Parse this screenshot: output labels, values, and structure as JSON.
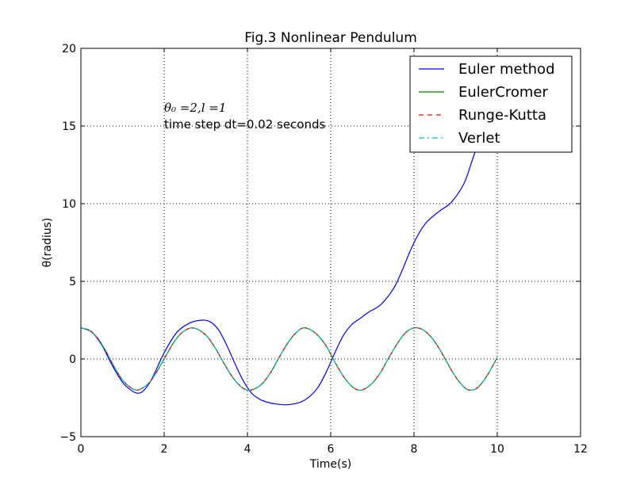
{
  "chart_data": {
    "type": "line",
    "title": "Fig.3 Nonlinear Pendulum",
    "xlabel": "Time(s)",
    "ylabel": "θ(radius)",
    "xlim": [
      0,
      12
    ],
    "ylim": [
      -5,
      20
    ],
    "xticks": [
      0,
      2,
      4,
      6,
      8,
      10,
      12
    ],
    "yticks": [
      -5,
      0,
      5,
      10,
      15,
      20
    ],
    "xtick_labels": [
      "0",
      "2",
      "4",
      "6",
      "8",
      "10",
      "12"
    ],
    "ytick_labels": [
      "−5",
      "0",
      "5",
      "10",
      "15",
      "20"
    ],
    "grid": true,
    "legend_position": "upper right",
    "annotation_math": "θ₀ =2,l =1",
    "annotation_text": "time step dt=0.02 seconds",
    "series": [
      {
        "name": "Euler method",
        "color": "#0000ff",
        "style": "solid",
        "x": [
          0,
          0.25,
          0.5,
          0.75,
          1.0,
          1.2,
          1.35,
          1.5,
          1.7,
          2.0,
          2.3,
          2.6,
          2.9,
          3.1,
          3.3,
          3.5,
          3.7,
          3.9,
          4.1,
          4.3,
          4.5,
          4.7,
          4.9,
          5.1,
          5.3,
          5.5,
          5.7,
          5.9,
          6.1,
          6.3,
          6.5,
          6.7,
          6.9,
          7.2,
          7.5,
          7.7,
          7.9,
          8.1,
          8.3,
          8.6,
          8.9,
          9.2,
          9.4,
          9.55
        ],
        "y": [
          2.0,
          1.75,
          0.9,
          -0.4,
          -1.5,
          -2.0,
          -2.2,
          -2.05,
          -1.3,
          0.4,
          1.7,
          2.3,
          2.5,
          2.4,
          1.9,
          0.9,
          -0.3,
          -1.4,
          -2.2,
          -2.6,
          -2.8,
          -2.9,
          -2.95,
          -2.9,
          -2.75,
          -2.4,
          -1.8,
          -0.8,
          0.4,
          1.5,
          2.2,
          2.6,
          3.0,
          3.5,
          4.5,
          5.6,
          6.9,
          8.0,
          8.8,
          9.5,
          10.1,
          11.3,
          12.8,
          14.0
        ]
      },
      {
        "name": "EulerCromer",
        "color": "#008000",
        "style": "solid",
        "x": [
          0,
          0.2,
          0.4,
          0.6,
          0.8,
          1.0,
          1.2,
          1.33,
          1.45,
          1.65,
          1.85,
          2.05,
          2.25,
          2.45,
          2.66,
          2.85,
          3.05,
          3.25,
          3.45,
          3.65,
          3.85,
          4.0,
          4.15,
          4.35,
          4.55,
          4.75,
          4.95,
          5.15,
          5.33,
          5.5,
          5.7,
          5.9,
          6.1,
          6.3,
          6.5,
          6.66,
          6.8,
          7.0,
          7.2,
          7.4,
          7.6,
          7.8,
          8.0,
          8.2,
          8.4,
          8.6,
          8.8,
          9.0,
          9.2,
          9.33,
          9.5,
          9.7,
          9.9,
          10.0
        ],
        "y": [
          2.0,
          1.85,
          1.35,
          0.5,
          -0.5,
          -1.35,
          -1.85,
          -2.0,
          -1.92,
          -1.5,
          -0.7,
          0.25,
          1.15,
          1.75,
          2.0,
          1.85,
          1.4,
          0.6,
          -0.35,
          -1.2,
          -1.8,
          -2.0,
          -1.95,
          -1.6,
          -0.9,
          0.05,
          0.95,
          1.65,
          2.0,
          1.9,
          1.5,
          0.8,
          -0.2,
          -1.1,
          -1.75,
          -2.0,
          -1.95,
          -1.55,
          -0.85,
          0.1,
          1.0,
          1.7,
          2.0,
          1.9,
          1.45,
          0.7,
          -0.25,
          -1.15,
          -1.8,
          -2.0,
          -1.9,
          -1.3,
          -0.4,
          0.1
        ]
      },
      {
        "name": "Runge-Kutta",
        "color": "#ff0000",
        "style": "dashed",
        "x": [
          0,
          0.2,
          0.4,
          0.6,
          0.8,
          1.0,
          1.2,
          1.33,
          1.45,
          1.65,
          1.85,
          2.05,
          2.25,
          2.45,
          2.66,
          2.85,
          3.05,
          3.25,
          3.45,
          3.65,
          3.85,
          4.0,
          4.15,
          4.35,
          4.55,
          4.75,
          4.95,
          5.15,
          5.33,
          5.5,
          5.7,
          5.9,
          6.1,
          6.3,
          6.5,
          6.66,
          6.8,
          7.0,
          7.2,
          7.4,
          7.6,
          7.8,
          8.0,
          8.2,
          8.4,
          8.6,
          8.8,
          9.0,
          9.2,
          9.33,
          9.5,
          9.7,
          9.9,
          10.0
        ],
        "y": [
          2.0,
          1.85,
          1.35,
          0.5,
          -0.5,
          -1.35,
          -1.85,
          -2.0,
          -1.92,
          -1.5,
          -0.7,
          0.25,
          1.15,
          1.75,
          2.0,
          1.85,
          1.4,
          0.6,
          -0.35,
          -1.2,
          -1.8,
          -2.0,
          -1.95,
          -1.6,
          -0.9,
          0.05,
          0.95,
          1.65,
          2.0,
          1.9,
          1.5,
          0.8,
          -0.2,
          -1.1,
          -1.75,
          -2.0,
          -1.95,
          -1.55,
          -0.85,
          0.1,
          1.0,
          1.7,
          2.0,
          1.9,
          1.45,
          0.7,
          -0.25,
          -1.15,
          -1.8,
          -2.0,
          -1.9,
          -1.3,
          -0.4,
          0.1
        ]
      },
      {
        "name": "Verlet",
        "color": "#00bfbf",
        "style": "dashdot",
        "x": [
          0,
          0.2,
          0.4,
          0.6,
          0.8,
          1.0,
          1.2,
          1.33,
          1.45,
          1.65,
          1.85,
          2.05,
          2.25,
          2.45,
          2.66,
          2.85,
          3.05,
          3.25,
          3.45,
          3.65,
          3.85,
          4.0,
          4.15,
          4.35,
          4.55,
          4.75,
          4.95,
          5.15,
          5.33,
          5.5,
          5.7,
          5.9,
          6.1,
          6.3,
          6.5,
          6.66,
          6.8,
          7.0,
          7.2,
          7.4,
          7.6,
          7.8,
          8.0,
          8.2,
          8.4,
          8.6,
          8.8,
          9.0,
          9.2,
          9.33,
          9.5,
          9.7,
          9.9,
          10.0
        ],
        "y": [
          2.0,
          1.85,
          1.35,
          0.5,
          -0.5,
          -1.35,
          -1.85,
          -2.0,
          -1.92,
          -1.5,
          -0.7,
          0.25,
          1.15,
          1.75,
          2.0,
          1.85,
          1.4,
          0.6,
          -0.35,
          -1.2,
          -1.8,
          -2.0,
          -1.95,
          -1.6,
          -0.9,
          0.05,
          0.95,
          1.65,
          2.0,
          1.9,
          1.5,
          0.8,
          -0.2,
          -1.1,
          -1.75,
          -2.0,
          -1.95,
          -1.55,
          -0.85,
          0.1,
          1.0,
          1.7,
          2.0,
          1.9,
          1.45,
          0.7,
          -0.25,
          -1.15,
          -1.8,
          -2.0,
          -1.9,
          -1.3,
          -0.4,
          0.1
        ]
      }
    ]
  }
}
